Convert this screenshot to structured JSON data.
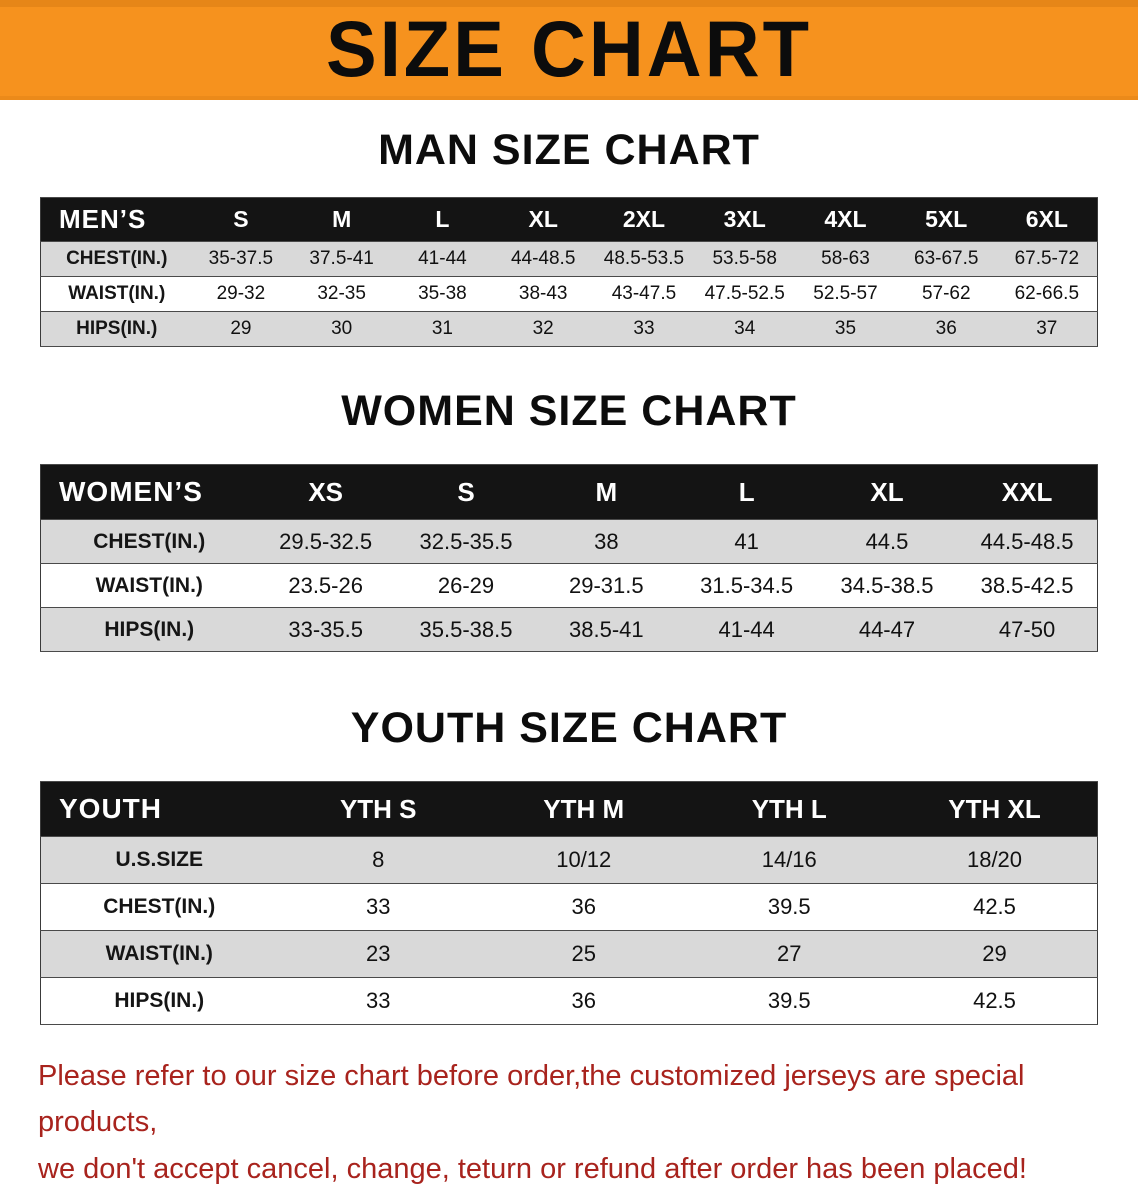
{
  "colors": {
    "banner_bg": "#f6921e",
    "table_header_bg": "#141414",
    "stripe_bg": "#d9d9d9",
    "disclaimer_color": "#a8231d"
  },
  "banner": {
    "title": "SIZE CHART"
  },
  "sections": [
    {
      "id": "men",
      "heading": "MAN SIZE CHART",
      "table": {
        "header": [
          "MEN’S",
          "S",
          "M",
          "L",
          "XL",
          "2XL",
          "3XL",
          "4XL",
          "5XL",
          "6XL"
        ],
        "rows": [
          [
            "CHEST(IN.)",
            "35-37.5",
            "37.5-41",
            "41-44",
            "44-48.5",
            "48.5-53.5",
            "53.5-58",
            "58-63",
            "63-67.5",
            "67.5-72"
          ],
          [
            "WAIST(IN.)",
            "29-32",
            "32-35",
            "35-38",
            "38-43",
            "43-47.5",
            "47.5-52.5",
            "52.5-57",
            "57-62",
            "62-66.5"
          ],
          [
            "HIPS(IN.)",
            "29",
            "30",
            "31",
            "32",
            "33",
            "34",
            "35",
            "36",
            "37"
          ]
        ]
      }
    },
    {
      "id": "women",
      "heading": "WOMEN SIZE CHART",
      "table": {
        "header": [
          "WOMEN’S",
          "XS",
          "S",
          "M",
          "L",
          "XL",
          "XXL"
        ],
        "rows": [
          [
            "CHEST(IN.)",
            "29.5-32.5",
            "32.5-35.5",
            "38",
            "41",
            "44.5",
            "44.5-48.5"
          ],
          [
            "WAIST(IN.)",
            "23.5-26",
            "26-29",
            "29-31.5",
            "31.5-34.5",
            "34.5-38.5",
            "38.5-42.5"
          ],
          [
            "HIPS(IN.)",
            "33-35.5",
            "35.5-38.5",
            "38.5-41",
            "41-44",
            "44-47",
            "47-50"
          ]
        ]
      }
    },
    {
      "id": "youth",
      "heading": "YOUTH SIZE CHART",
      "table": {
        "header": [
          "YOUTH",
          "YTH S",
          "YTH M",
          "YTH L",
          "YTH XL"
        ],
        "rows": [
          [
            "U.S.SIZE",
            "8",
            "10/12",
            "14/16",
            "18/20"
          ],
          [
            "CHEST(IN.)",
            "33",
            "36",
            "39.5",
            "42.5"
          ],
          [
            "WAIST(IN.)",
            "23",
            "25",
            "27",
            "29"
          ],
          [
            "HIPS(IN.)",
            "33",
            "36",
            "39.5",
            "42.5"
          ]
        ]
      }
    }
  ],
  "disclaimer": {
    "line1": "Please refer to our size chart before order,the customized jerseys are special products,",
    "line2": "we don't accept cancel, change, teturn or refund after order has been placed!"
  }
}
